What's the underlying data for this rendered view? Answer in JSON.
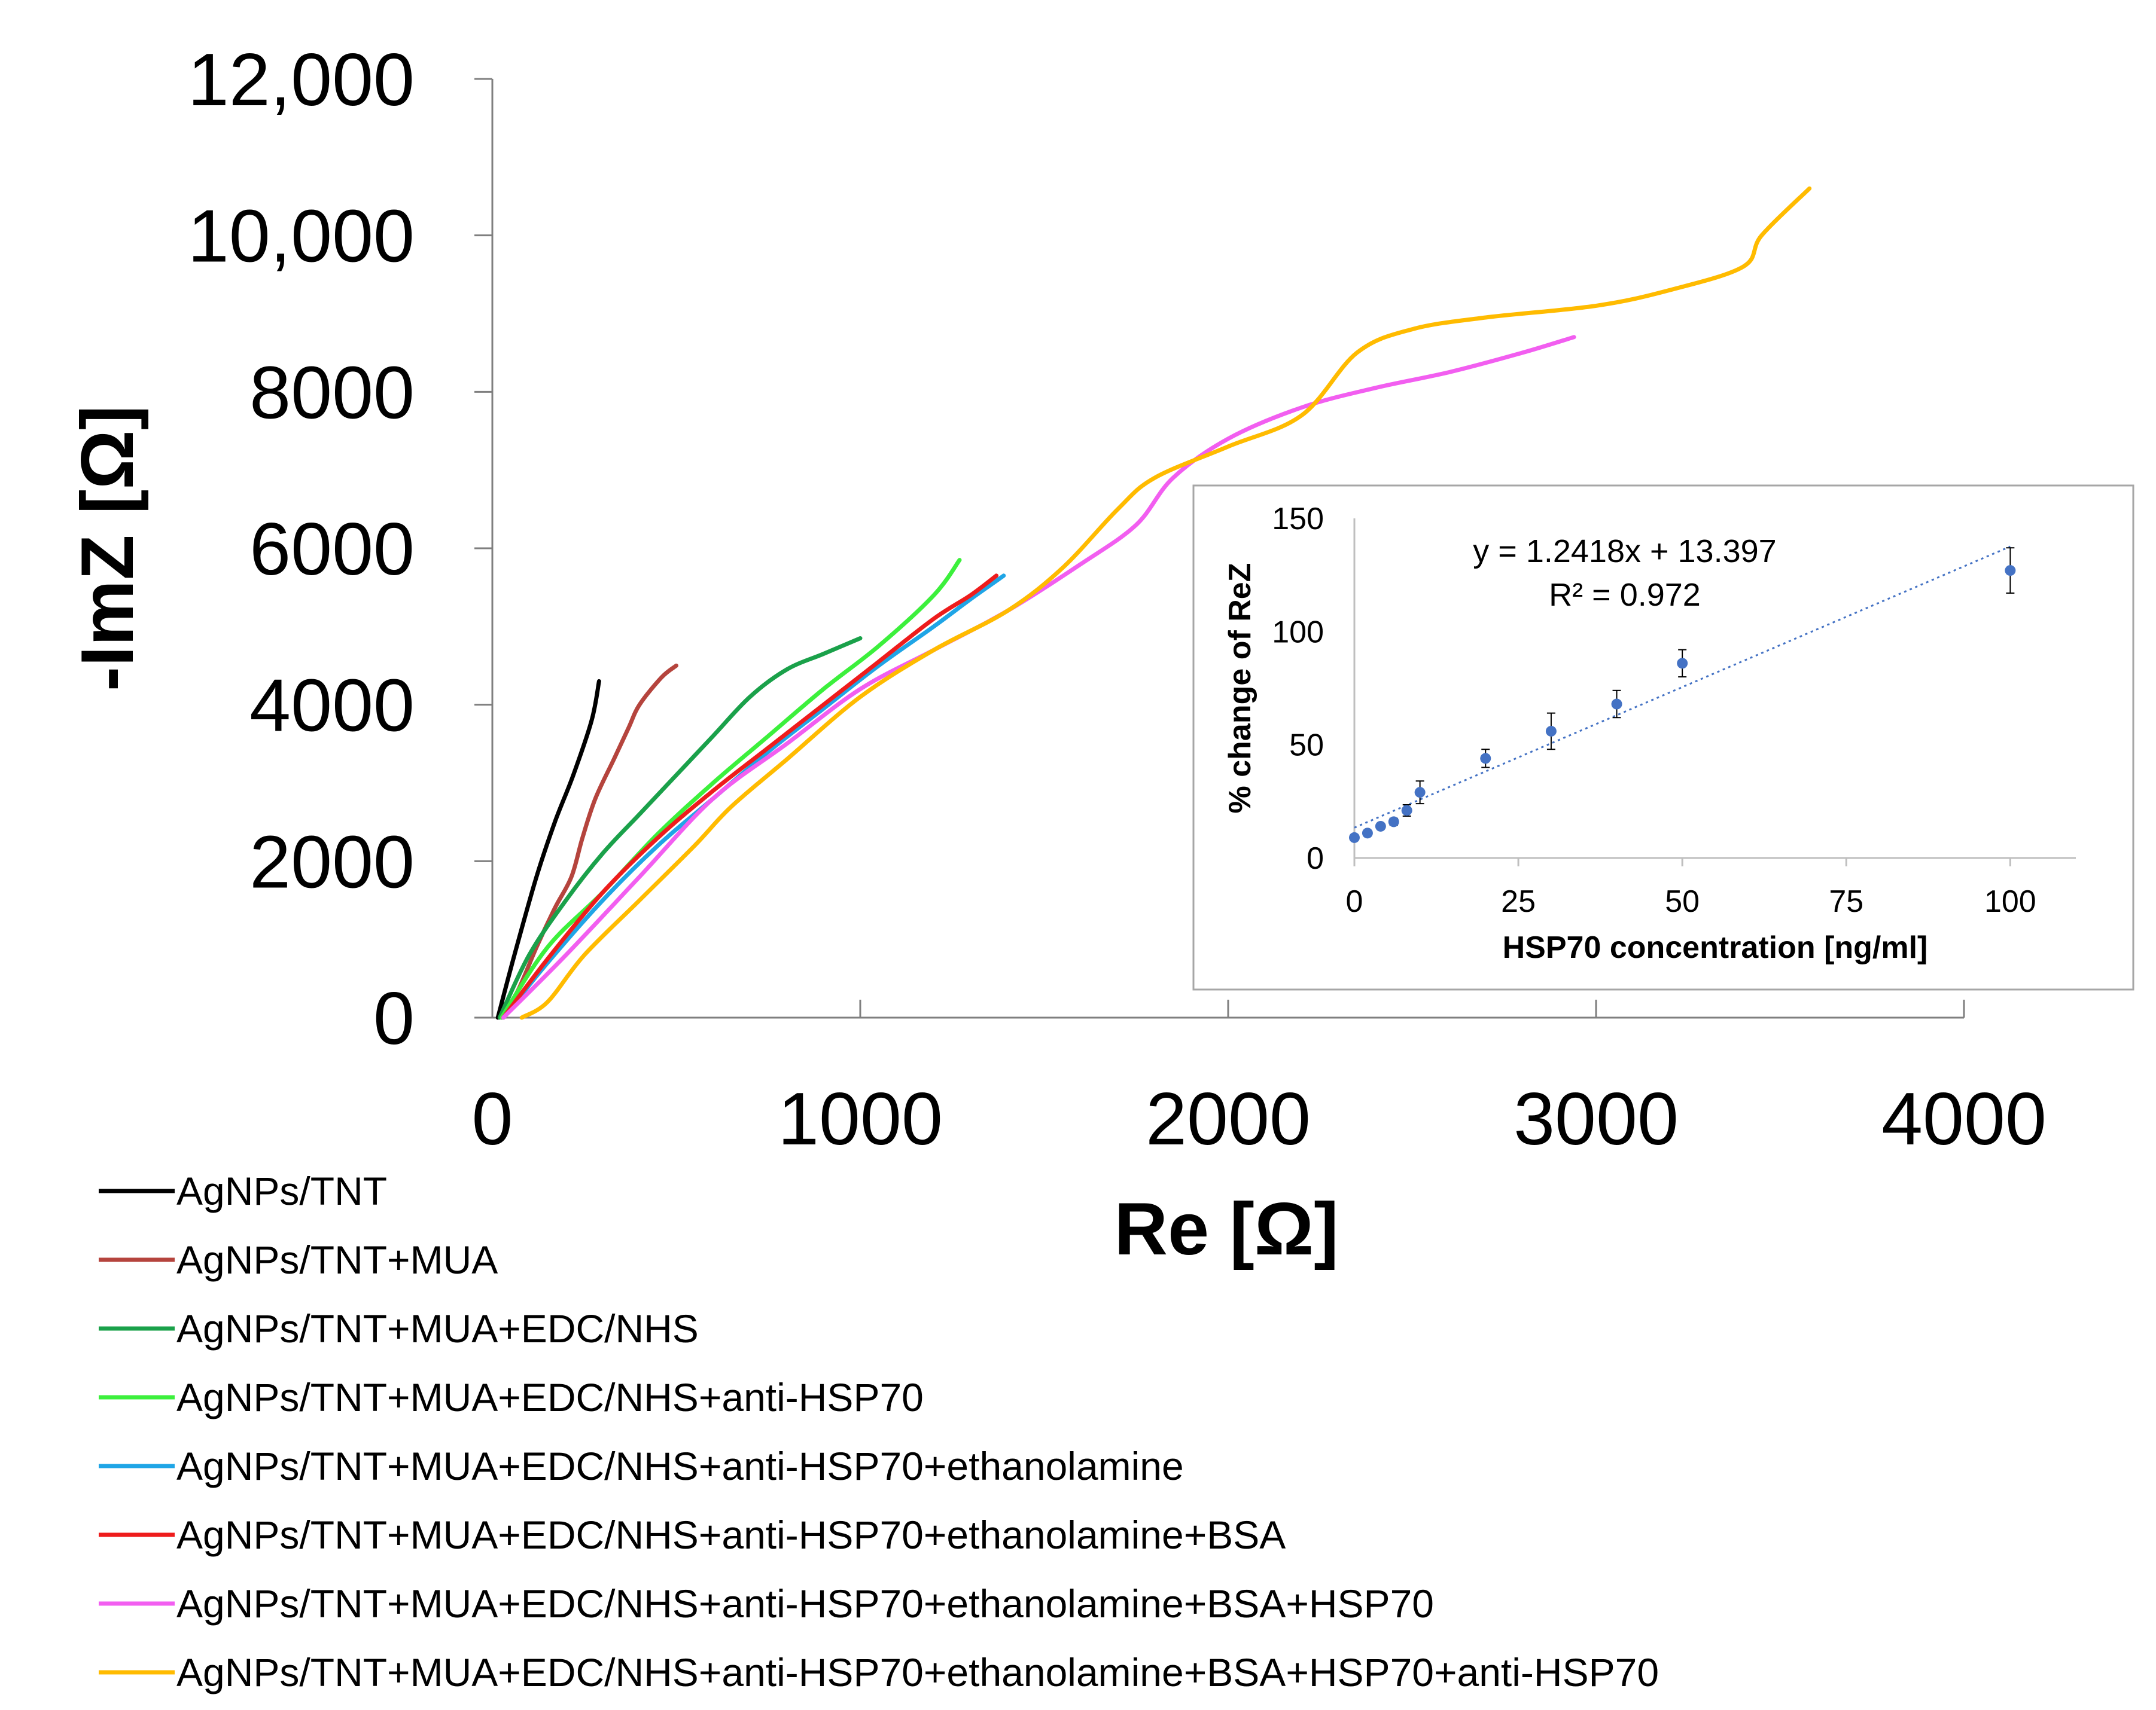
{
  "chart_data": [
    {
      "type": "line",
      "title": "",
      "xlabel": "Re [Ω]",
      "ylabel": "-ImZ [Ω]",
      "xlim": [
        0,
        4000
      ],
      "ylim": [
        0,
        12000
      ],
      "x_ticks": [
        0,
        1000,
        2000,
        3000,
        4000
      ],
      "x_tick_labels": [
        "0",
        "1000",
        "2000",
        "3000",
        "4000"
      ],
      "y_ticks": [
        0,
        2000,
        4000,
        6000,
        8000,
        10000,
        12000
      ],
      "y_tick_labels": [
        "0",
        "2000",
        "4000",
        "6000",
        "8000",
        "10,000",
        "12,000"
      ],
      "grid": false,
      "legend_position": "bottom-left",
      "series": [
        {
          "name": "AgNPs/TNT",
          "color": "#000000",
          "points": [
            [
              15,
              0
            ],
            [
              60,
              800
            ],
            [
              120,
              1800
            ],
            [
              170,
              2500
            ],
            [
              220,
              3100
            ],
            [
              270,
              3800
            ],
            [
              290,
              4300
            ]
          ]
        },
        {
          "name": "AgNPs/TNT+MUA",
          "color": "#b5443d",
          "points": [
            [
              25,
              0
            ],
            [
              70,
              350
            ],
            [
              120,
              900
            ],
            [
              170,
              1400
            ],
            [
              215,
              1800
            ],
            [
              245,
              2300
            ],
            [
              280,
              2800
            ],
            [
              330,
              3300
            ],
            [
              370,
              3700
            ],
            [
              400,
              4000
            ],
            [
              460,
              4350
            ],
            [
              500,
              4500
            ]
          ]
        },
        {
          "name": "AgNPs/TNT+MUA+EDC/NHS",
          "color": "#1aa14a",
          "points": [
            [
              20,
              0
            ],
            [
              100,
              800
            ],
            [
              200,
              1500
            ],
            [
              300,
              2100
            ],
            [
              400,
              2600
            ],
            [
              500,
              3100
            ],
            [
              600,
              3600
            ],
            [
              700,
              4100
            ],
            [
              800,
              4450
            ],
            [
              900,
              4650
            ],
            [
              1000,
              4850
            ]
          ]
        },
        {
          "name": "AgNPs/TNT+MUA+EDC/NHS+anti-HSP70",
          "color": "#3cf03c",
          "points": [
            [
              25,
              0
            ],
            [
              150,
              900
            ],
            [
              300,
              1600
            ],
            [
              450,
              2350
            ],
            [
              600,
              3000
            ],
            [
              750,
              3600
            ],
            [
              900,
              4200
            ],
            [
              1050,
              4750
            ],
            [
              1200,
              5400
            ],
            [
              1270,
              5850
            ]
          ]
        },
        {
          "name": "AgNPs/TNT+MUA+EDC/NHS+anti-HSP70+ethanolamine",
          "color": "#1fa5e6",
          "points": [
            [
              30,
              0
            ],
            [
              150,
              700
            ],
            [
              300,
              1500
            ],
            [
              450,
              2200
            ],
            [
              600,
              2800
            ],
            [
              750,
              3400
            ],
            [
              900,
              3950
            ],
            [
              1050,
              4500
            ],
            [
              1200,
              5000
            ],
            [
              1300,
              5350
            ],
            [
              1390,
              5650
            ]
          ]
        },
        {
          "name": "AgNPs/TNT+MUA+EDC/NHS+anti-HSP70+ethanolamine+BSA",
          "color": "#ee1c1c",
          "points": [
            [
              30,
              0
            ],
            [
              150,
              750
            ],
            [
              300,
              1600
            ],
            [
              450,
              2300
            ],
            [
              600,
              2900
            ],
            [
              750,
              3450
            ],
            [
              900,
              4000
            ],
            [
              1050,
              4550
            ],
            [
              1200,
              5100
            ],
            [
              1300,
              5400
            ],
            [
              1370,
              5650
            ]
          ]
        },
        {
          "name": "AgNPs/TNT+MUA+EDC/NHS+anti-HSP70+ethanolamine+BSA+HSP70",
          "color": "#f25ef0",
          "points": [
            [
              30,
              0
            ],
            [
              200,
              800
            ],
            [
              400,
              1800
            ],
            [
              600,
              2800
            ],
            [
              800,
              3500
            ],
            [
              1000,
              4200
            ],
            [
              1200,
              4700
            ],
            [
              1400,
              5200
            ],
            [
              1600,
              5800
            ],
            [
              1750,
              6300
            ],
            [
              1850,
              6900
            ],
            [
              2000,
              7400
            ],
            [
              2200,
              7800
            ],
            [
              2400,
              8050
            ],
            [
              2600,
              8250
            ],
            [
              2800,
              8500
            ],
            [
              2940,
              8700
            ]
          ]
        },
        {
          "name": "AgNPs/TNT+MUA+EDC/NHS+anti-HSP70+ethanolamine+BSA+HSP70+anti-HSP70",
          "color": "#ffbb00",
          "points": [
            [
              80,
              0
            ],
            [
              150,
              200
            ],
            [
              250,
              800
            ],
            [
              400,
              1500
            ],
            [
              550,
              2200
            ],
            [
              650,
              2700
            ],
            [
              800,
              3300
            ],
            [
              1000,
              4100
            ],
            [
              1200,
              4700
            ],
            [
              1400,
              5200
            ],
            [
              1550,
              5750
            ],
            [
              1700,
              6500
            ],
            [
              1800,
              6900
            ],
            [
              2000,
              7300
            ],
            [
              2200,
              7700
            ],
            [
              2350,
              8500
            ],
            [
              2500,
              8800
            ],
            [
              2700,
              8950
            ],
            [
              3000,
              9100
            ],
            [
              3200,
              9300
            ],
            [
              3400,
              9600
            ],
            [
              3450,
              10000
            ],
            [
              3580,
              10600
            ]
          ]
        }
      ]
    },
    {
      "type": "scatter",
      "title": "",
      "xlabel": "HSP70 concentration [ng/ml]",
      "ylabel": "% change of ReZ",
      "xlim": [
        0,
        110
      ],
      "ylim": [
        0,
        150
      ],
      "x_ticks": [
        0,
        25,
        50,
        75,
        100
      ],
      "x_tick_labels": [
        "0",
        "25",
        "50",
        "75",
        "100"
      ],
      "y_ticks": [
        0,
        50,
        100,
        150
      ],
      "y_tick_labels": [
        "0",
        "50",
        "100",
        "150"
      ],
      "grid": false,
      "marker_color": "#4472c4",
      "points": [
        {
          "x": 0,
          "y": 9,
          "err": 1
        },
        {
          "x": 2,
          "y": 11,
          "err": 1
        },
        {
          "x": 4,
          "y": 14,
          "err": 1
        },
        {
          "x": 6,
          "y": 16,
          "err": 1.5
        },
        {
          "x": 8,
          "y": 21,
          "err": 2.5
        },
        {
          "x": 10,
          "y": 29,
          "err": 5
        },
        {
          "x": 20,
          "y": 44,
          "err": 4
        },
        {
          "x": 30,
          "y": 56,
          "err": 8
        },
        {
          "x": 40,
          "y": 68,
          "err": 6
        },
        {
          "x": 50,
          "y": 86,
          "err": 6
        },
        {
          "x": 100,
          "y": 127,
          "err": 10
        }
      ],
      "trendline": {
        "slope": 1.2418,
        "intercept": 13.397,
        "x_range": [
          0,
          100
        ]
      },
      "equation": "y = 1.2418x + 13.397",
      "r_squared": "R² = 0.972"
    }
  ]
}
